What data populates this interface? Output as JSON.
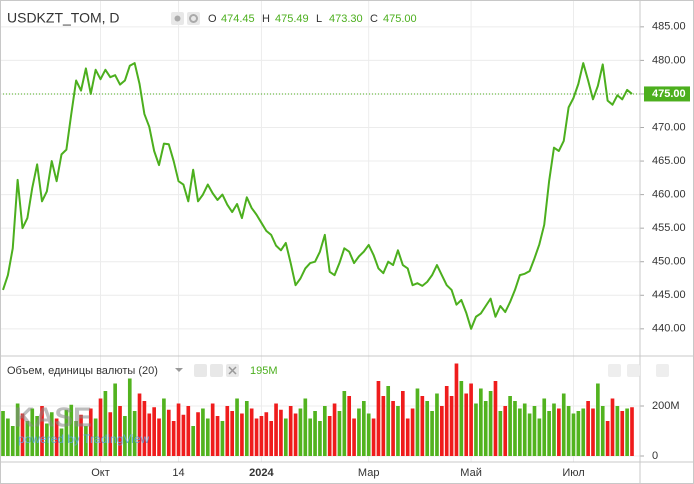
{
  "chart_data": {
    "type": "line",
    "title": "USDKZT_TOM, D",
    "ohlc": [
      {
        "label": "O",
        "value": "474.45"
      },
      {
        "label": "H",
        "value": "475.49"
      },
      {
        "label": "L",
        "value": "473.30"
      },
      {
        "label": "C",
        "value": "475.00"
      }
    ],
    "color": "#4caf1e",
    "grid": true,
    "categories": [
      null,
      null,
      null,
      null,
      null,
      null,
      null,
      null,
      null,
      null,
      null,
      null,
      null,
      null,
      null,
      null,
      null,
      null,
      null,
      null,
      "Окт",
      null,
      null,
      null,
      null,
      null,
      null,
      null,
      null,
      null,
      null,
      null,
      null,
      null,
      null,
      null,
      "14",
      null,
      null,
      null,
      null,
      null,
      null,
      null,
      null,
      null,
      null,
      null,
      null,
      null,
      null,
      null,
      null,
      "2024",
      null,
      null,
      null,
      null,
      null,
      null,
      null,
      null,
      null,
      null,
      null,
      null,
      null,
      null,
      null,
      null,
      null,
      null,
      null,
      null,
      null,
      "Мар",
      null,
      null,
      null,
      null,
      null,
      null,
      null,
      null,
      null,
      null,
      null,
      null,
      null,
      null,
      null,
      null,
      null,
      null,
      null,
      null,
      "Май",
      null,
      null,
      null,
      null,
      null,
      null,
      null,
      null,
      null,
      null,
      null,
      null,
      null,
      null,
      null,
      null,
      null,
      null,
      null,
      null,
      "Июл",
      null,
      null,
      null,
      null,
      null,
      null,
      null,
      null,
      null,
      null,
      null,
      null
    ],
    "values": [
      445.8,
      448,
      452,
      462.2,
      455,
      456.5,
      461,
      464.5,
      459,
      460.5,
      465,
      462,
      466,
      466.7,
      472,
      477,
      475.5,
      478.8,
      475,
      478.6,
      477.2,
      478.6,
      477.5,
      477.8,
      476.4,
      477,
      479.2,
      479.6,
      476.5,
      472,
      470.1,
      466.5,
      464.4,
      467.6,
      467.5,
      465,
      462,
      461.5,
      459,
      463.7,
      459,
      460,
      461.5,
      460.2,
      459.2,
      460,
      458.5,
      457.4,
      458.6,
      456.5,
      459.6,
      458,
      457,
      455.8,
      454.6,
      454,
      452.4,
      451.7,
      452.8,
      449.8,
      446.5,
      447.5,
      449,
      449.8,
      450,
      451.5,
      454,
      448.5,
      448,
      449.8,
      452,
      451.5,
      449.8,
      450.8,
      451.5,
      452.5,
      451,
      449,
      448.3,
      450,
      449.5,
      451.7,
      449.5,
      449,
      446.5,
      446.8,
      446.4,
      447,
      448,
      449.5,
      448,
      446.5,
      445.8,
      443.6,
      444.3,
      442.4,
      440,
      441.8,
      442.3,
      443.4,
      444.5,
      441.8,
      443.4,
      442.5,
      444,
      445.8,
      448,
      448.2,
      448.6,
      450.5,
      452.6,
      455.5,
      462,
      467,
      466.5,
      468,
      473,
      474.4,
      476.5,
      479.6,
      477,
      474.2,
      476.2,
      479.4,
      474,
      473.4,
      474.8,
      474.2,
      475.6,
      475.0
    ],
    "ylim": [
      436.1,
      489.0
    ],
    "yticks": [
      {
        "value": 440,
        "label": "440.00"
      },
      {
        "value": 445,
        "label": "445.00"
      },
      {
        "value": 450,
        "label": "450.00"
      },
      {
        "value": 455,
        "label": "455.00"
      },
      {
        "value": 460,
        "label": "460.00"
      },
      {
        "value": 465,
        "label": "465.00"
      },
      {
        "value": 470,
        "label": "470.00"
      },
      {
        "value": 475,
        "label": "475.00"
      },
      {
        "value": 480,
        "label": "480.00"
      },
      {
        "value": 485,
        "label": "485.00"
      }
    ],
    "last_price": {
      "value": 475,
      "label": "475.00"
    },
    "volume": {
      "name": "Объем, единицы валюты (20)",
      "legend_value": {
        "value": 195,
        "label": "195M"
      },
      "up_color": "#52b31f",
      "down_color": "#ef1c1c",
      "values": [
        180,
        150,
        120,
        210,
        170,
        140,
        190,
        160,
        200,
        130,
        175,
        150,
        110,
        185,
        205,
        140,
        165,
        120,
        190,
        150,
        230,
        260,
        175,
        290,
        200,
        160,
        310,
        180,
        250,
        220,
        170,
        195,
        150,
        230,
        185,
        140,
        210,
        165,
        200,
        120,
        175,
        190,
        150,
        210,
        160,
        140,
        200,
        180,
        230,
        170,
        220,
        190,
        150,
        160,
        175,
        140,
        210,
        185,
        150,
        200,
        170,
        190,
        230,
        150,
        180,
        140,
        200,
        160,
        210,
        180,
        260,
        240,
        150,
        190,
        220,
        170,
        150,
        300,
        240,
        280,
        220,
        200,
        260,
        150,
        190,
        270,
        240,
        220,
        180,
        250,
        200,
        280,
        240,
        370,
        300,
        250,
        290,
        210,
        270,
        220,
        260,
        300,
        180,
        200,
        240,
        220,
        190,
        210,
        170,
        200,
        150,
        230,
        180,
        210,
        190,
        250,
        200,
        170,
        180,
        190,
        220,
        190,
        290,
        200,
        140,
        230,
        200,
        180,
        190,
        195
      ],
      "ylim": [
        -24,
        396
      ],
      "yticks": [
        0,
        {
          "value": 200,
          "label": "200M"
        }
      ]
    },
    "watermark": "KASE",
    "powered_by": "powered by TradingView"
  }
}
